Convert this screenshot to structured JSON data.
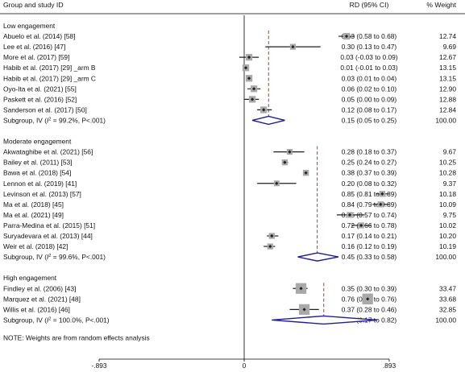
{
  "header": {
    "col_study": "Group and study ID",
    "col_rd": "RD (95% CI)",
    "col_weight": "% Weight"
  },
  "note": "NOTE: Weights are from random effects analysis",
  "colors": {
    "marker": "#202020",
    "box": "#a9a9a9",
    "diamond": "#1f1f8f",
    "ref_line": "#b22222",
    "axis": "#000000"
  },
  "chart_data": {
    "type": "forest",
    "xlim": [
      -0.893,
      0.893
    ],
    "ticks": [
      {
        "value": -0.893,
        "label": "-.893"
      },
      {
        "value": 0,
        "label": "0"
      },
      {
        "value": 0.893,
        "label": ".893"
      }
    ],
    "groups": [
      {
        "name": "Low engagement",
        "studies": [
          {
            "label": "Abuelo et al. (2014) [58]",
            "rd": 0.63,
            "lo": 0.58,
            "hi": 0.68,
            "ci_text": "0.63 (0.58 to 0.68)",
            "weight": "12.74"
          },
          {
            "label": "Lee et al. (2016) [47]",
            "rd": 0.3,
            "lo": 0.13,
            "hi": 0.47,
            "ci_text": "0.30 (0.13 to 0.47)",
            "weight": "9.69"
          },
          {
            "label": "More et al. (2017) [59]",
            "rd": 0.03,
            "lo": -0.03,
            "hi": 0.09,
            "ci_text": "0.03 (-0.03 to 0.09)",
            "weight": "12.67"
          },
          {
            "label": "Habib et al. (2017) [29] _arm B",
            "rd": 0.01,
            "lo": -0.01,
            "hi": 0.03,
            "ci_text": "0.01 (-0.01 to 0.03)",
            "weight": "13.15"
          },
          {
            "label": "Habib et al. (2017) [29] _arm C",
            "rd": 0.03,
            "lo": 0.01,
            "hi": 0.04,
            "ci_text": "0.03 (0.01 to 0.04)",
            "weight": "13.15"
          },
          {
            "label": "Oyo-Ita et al. (2021) [55]",
            "rd": 0.06,
            "lo": 0.02,
            "hi": 0.1,
            "ci_text": "0.06 (0.02 to 0.10)",
            "weight": "12.90"
          },
          {
            "label": "Paskett et al. (2016) [52]",
            "rd": 0.05,
            "lo": 0.0,
            "hi": 0.09,
            "ci_text": "0.05 (0.00 to 0.09)",
            "weight": "12.88"
          },
          {
            "label": "Sanderson et al. (2017) [50]",
            "rd": 0.12,
            "lo": 0.08,
            "hi": 0.17,
            "ci_text": "0.12 (0.08 to 0.17)",
            "weight": "12.84"
          }
        ],
        "subtotal": {
          "label_pre": "Subgroup, IV (",
          "label_i2": "I",
          "label_post": " = 99.2%, P<.001)",
          "rd": 0.15,
          "lo": 0.05,
          "hi": 0.25,
          "ci_text": "0.15 (0.05 to 0.25)",
          "weight": "100.00"
        }
      },
      {
        "name": "Moderate engagement",
        "studies": [
          {
            "label": "Akwataghibe et al. (2021) [56]",
            "rd": 0.28,
            "lo": 0.18,
            "hi": 0.37,
            "ci_text": "0.28 (0.18 to 0.37)",
            "weight": "9.67"
          },
          {
            "label": "Bailey et al. (2011) [53]",
            "rd": 0.25,
            "lo": 0.24,
            "hi": 0.27,
            "ci_text": "0.25 (0.24 to 0.27)",
            "weight": "10.25"
          },
          {
            "label": "Bawa et al. (2018) [54]",
            "rd": 0.38,
            "lo": 0.37,
            "hi": 0.39,
            "ci_text": "0.38 (0.37 to 0.39)",
            "weight": "10.28"
          },
          {
            "label": "Lennon et al. (2019) [41]",
            "rd": 0.2,
            "lo": 0.08,
            "hi": 0.32,
            "ci_text": "0.20 (0.08 to 0.32)",
            "weight": "9.37"
          },
          {
            "label": "Levinson et al. (2013) [57]",
            "rd": 0.85,
            "lo": 0.81,
            "hi": 0.89,
            "ci_text": "0.85 (0.81 to 0.89)",
            "weight": "10.18"
          },
          {
            "label": "Ma et al. (2018) [45]",
            "rd": 0.84,
            "lo": 0.79,
            "hi": 0.89,
            "ci_text": "0.84 (0.79 to 0.89)",
            "weight": "10.09"
          },
          {
            "label": "Ma et al. (2021) [49]",
            "rd": 0.65,
            "lo": 0.57,
            "hi": 0.74,
            "ci_text": "0.65 (0.57 to 0.74)",
            "weight": "9.75"
          },
          {
            "label": "Parra-Medina et al. (2015) [51]",
            "rd": 0.72,
            "lo": 0.66,
            "hi": 0.78,
            "ci_text": "0.72 (0.66 to 0.78)",
            "weight": "10.02"
          },
          {
            "label": "Suryadevara et al. (2013) [44]",
            "rd": 0.17,
            "lo": 0.14,
            "hi": 0.21,
            "ci_text": "0.17 (0.14 to 0.21)",
            "weight": "10.20"
          },
          {
            "label": "Weir et al. (2018) [42]",
            "rd": 0.16,
            "lo": 0.12,
            "hi": 0.19,
            "ci_text": "0.16 (0.12 to 0.19)",
            "weight": "10.19"
          }
        ],
        "subtotal": {
          "label_pre": "Subgroup, IV (",
          "label_i2": "I",
          "label_post": " = 99.6%, P<.001)",
          "rd": 0.45,
          "lo": 0.33,
          "hi": 0.58,
          "ci_text": "0.45 (0.33 to 0.58)",
          "weight": "100.00"
        }
      },
      {
        "name": "High engagement",
        "studies": [
          {
            "label": "Findley et al. (2006) [43]",
            "rd": 0.35,
            "lo": 0.3,
            "hi": 0.39,
            "ci_text": "0.35 (0.30 to 0.39)",
            "weight": "33.47"
          },
          {
            "label": "Marquez et al. (2021) [48]",
            "rd": 0.76,
            "lo": 0.75,
            "hi": 0.76,
            "ci_text": "0.76 (0.75 to 0.76)",
            "weight": "33.68"
          },
          {
            "label": "Willis et al. (2016) [46]",
            "rd": 0.37,
            "lo": 0.28,
            "hi": 0.46,
            "ci_text": "0.37 (0.28 to 0.46)",
            "weight": "32.85"
          }
        ],
        "subtotal": {
          "label_pre": "Subgroup, IV (",
          "label_i2": "I",
          "label_post": " = 100.0%, P<.001)",
          "rd": 0.49,
          "lo": 0.17,
          "hi": 0.82,
          "ci_text": "0.49 (0.17 to 0.82)",
          "weight": "100.00"
        }
      }
    ]
  }
}
